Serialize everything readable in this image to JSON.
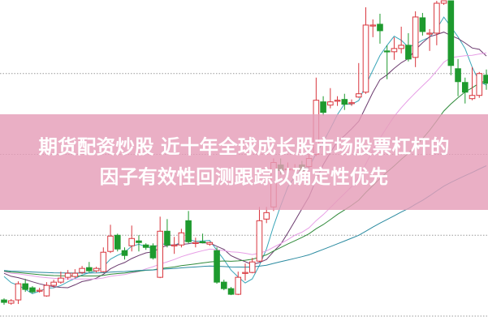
{
  "banner": {
    "title_line1": "期货配资炒股 近十年全球成长股市场股票杠杆的",
    "title_line2": "因子有效性回测跟踪以确定性优先"
  },
  "chart_data": {
    "type": "candlestick",
    "title": "",
    "xlabel": "",
    "ylabel": "",
    "ylim": [
      0,
      40.1
    ],
    "grid": true,
    "grid_levels": [
      1,
      11,
      21,
      31
    ],
    "colors": {
      "up": "#d9363e",
      "down": "#1e9a2e",
      "grid": "#999999",
      "banner": "#e59eb8"
    },
    "moving_averages": [
      {
        "period": 5,
        "color": "#3aa6b9"
      },
      {
        "period": 10,
        "color": "#6b3a6e"
      },
      {
        "period": 20,
        "color": "#e79ee6"
      },
      {
        "period": 30,
        "color": "#2f8a3a"
      },
      {
        "period": 60,
        "color": "#2a8aa0"
      }
    ],
    "candles": [
      [
        3.0,
        3.2,
        2.4,
        2.7
      ],
      [
        2.6,
        3.1,
        2.4,
        2.9
      ],
      [
        3.0,
        5.3,
        2.5,
        5.0
      ],
      [
        5.0,
        5.6,
        4.0,
        4.3
      ],
      [
        4.5,
        4.7,
        3.8,
        4.0
      ],
      [
        4.2,
        4.5,
        3.9,
        4.2
      ],
      [
        3.5,
        5.2,
        3.4,
        4.8
      ],
      [
        4.8,
        5.5,
        4.5,
        5.2
      ],
      [
        5.2,
        6.5,
        5.0,
        5.7
      ],
      [
        5.8,
        6.7,
        5.5,
        6.3
      ],
      [
        5.9,
        6.8,
        5.7,
        6.3
      ],
      [
        6.4,
        7.2,
        6.2,
        6.9
      ],
      [
        7.0,
        7.7,
        6.4,
        6.6
      ],
      [
        6.6,
        7.1,
        6.4,
        6.9
      ],
      [
        6.5,
        9.5,
        6.4,
        8.9
      ],
      [
        9.0,
        12.3,
        8.8,
        10.9
      ],
      [
        11.0,
        11.2,
        9.0,
        9.3
      ],
      [
        9.1,
        9.5,
        8.0,
        8.5
      ],
      [
        9.7,
        12.2,
        9.0,
        10.6
      ],
      [
        10.3,
        11.0,
        9.0,
        10.1
      ],
      [
        9.8,
        10.0,
        9.2,
        9.5
      ],
      [
        9.7,
        10.0,
        8.0,
        8.2
      ],
      [
        5.8,
        13.3,
        5.7,
        11.5
      ],
      [
        11.5,
        13.0,
        9.5,
        9.8
      ],
      [
        9.8,
        10.8,
        8.7,
        9.8
      ],
      [
        9.8,
        11.8,
        9.5,
        11.3
      ],
      [
        12.8,
        14.0,
        10.0,
        10.2
      ],
      [
        10.1,
        10.7,
        9.5,
        10.1
      ],
      [
        10.2,
        11.2,
        10.0,
        10.1
      ],
      [
        9.9,
        10.2,
        9.7,
        10.1
      ],
      [
        9.1,
        9.5,
        5.0,
        5.2
      ],
      [
        5.2,
        5.5,
        4.2,
        4.4
      ],
      [
        4.4,
        4.6,
        3.6,
        3.7
      ],
      [
        3.7,
        6.5,
        3.6,
        5.8
      ],
      [
        6.4,
        7.5,
        5.4,
        6.4
      ],
      [
        6.4,
        8.2,
        6.3,
        7.7
      ],
      [
        7.8,
        14.5,
        7.7,
        12.8
      ],
      [
        13.0,
        14.5,
        12.5,
        13.8
      ],
      [
        14.5,
        20.5,
        14.0,
        20.0
      ],
      [
        19.7,
        20.5,
        18.5,
        19.0
      ],
      [
        19.2,
        20.0,
        18.5,
        19.2
      ],
      [
        19.2,
        19.8,
        18.7,
        19.2
      ],
      [
        19.7,
        20.2,
        18.7,
        19.0
      ],
      [
        19.5,
        21.5,
        19.3,
        20.5
      ],
      [
        21.0,
        30.5,
        20.8,
        27.7
      ],
      [
        27.5,
        28.2,
        25.8,
        26.2
      ],
      [
        27.1,
        29.2,
        26.7,
        27.5
      ],
      [
        27.6,
        28.2,
        27.0,
        27.7
      ],
      [
        27.8,
        28.5,
        26.5,
        27.2
      ],
      [
        27.4,
        27.8,
        27.0,
        27.4
      ],
      [
        28.1,
        32.3,
        28.0,
        28.5
      ],
      [
        28.7,
        39.2,
        28.5,
        37.0
      ],
      [
        37.0,
        37.7,
        35.5,
        37.0
      ],
      [
        37.1,
        38.4,
        34.7,
        36.3
      ],
      [
        33.8,
        34.5,
        30.3,
        33.7
      ],
      [
        33.7,
        35.5,
        32.7,
        34.1
      ],
      [
        34.1,
        36.8,
        33.5,
        34.5
      ],
      [
        34.5,
        36.0,
        32.5,
        32.8
      ],
      [
        33.0,
        38.7,
        31.8,
        38.0
      ],
      [
        37.9,
        38.5,
        35.7,
        36.2
      ],
      [
        36.0,
        36.5,
        33.8,
        36.0
      ],
      [
        36.0,
        40.0,
        34.5,
        39.7
      ],
      [
        39.7,
        40.0,
        39.5,
        40.0
      ],
      [
        40.0,
        40.0,
        30.8,
        32.0
      ],
      [
        31.6,
        32.8,
        28.2,
        30.0
      ],
      [
        29.9,
        30.5,
        27.3,
        28.7
      ],
      [
        27.9,
        31.8,
        27.7,
        28.3
      ],
      [
        28.3,
        31.2,
        28.0,
        31.0
      ],
      [
        30.8,
        31.5,
        29.0,
        29.8
      ]
    ],
    "candle_fields": [
      "open",
      "high",
      "low",
      "close"
    ]
  }
}
